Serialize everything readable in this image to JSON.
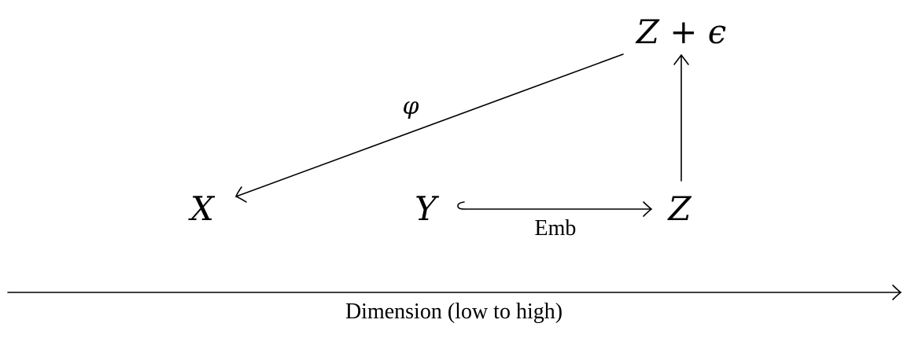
{
  "nodes": {
    "x": "X",
    "y": "Y",
    "z": "Z",
    "z_eps": "Z + ϵ"
  },
  "edges": {
    "phi": "φ",
    "emb": "Emb"
  },
  "axis": {
    "label": "Dimension (low to high)"
  }
}
